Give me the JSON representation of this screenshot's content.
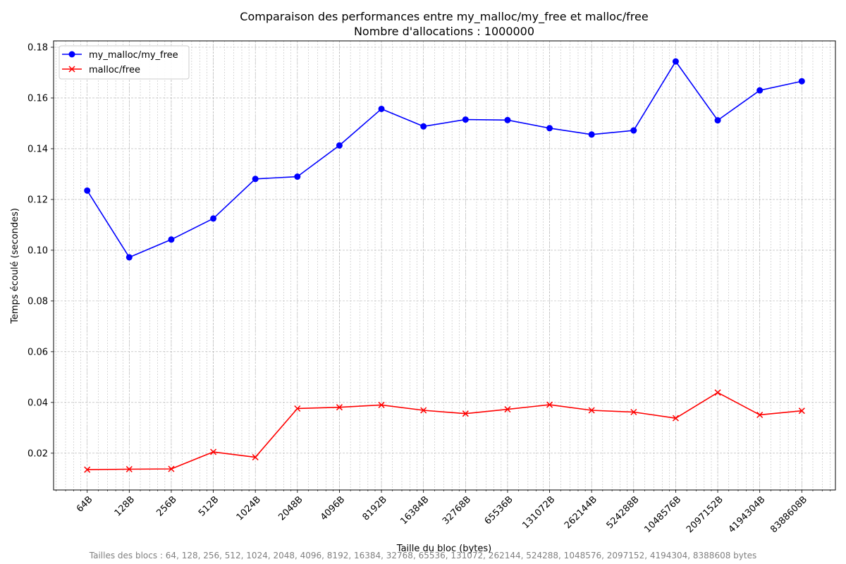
{
  "chart_data": {
    "type": "line",
    "title": "Comparaison des performances entre my_malloc/my_free et malloc/free",
    "subtitle": "Nombre d'allocations : 1000000",
    "xlabel": "Taille du bloc (bytes)",
    "ylabel": "Temps écoulé (secondes)",
    "x_scale": "log2",
    "x": [
      64,
      128,
      256,
      512,
      1024,
      2048,
      4096,
      8192,
      16384,
      32768,
      65536,
      131072,
      262144,
      524288,
      1048576,
      2097152,
      4194304,
      8388608
    ],
    "x_tick_labels": [
      "64B",
      "128B",
      "256B",
      "512B",
      "1024B",
      "2048B",
      "4096B",
      "8192B",
      "16384B",
      "32768B",
      "65536B",
      "131072B",
      "262144B",
      "524288B",
      "1048576B",
      "2097152B",
      "4194304B",
      "8388608B"
    ],
    "y_ticks": [
      "0.02",
      "0.04",
      "0.06",
      "0.08",
      "0.10",
      "0.12",
      "0.14",
      "0.16",
      "0.18"
    ],
    "ylim": [
      0.0055,
      0.1825
    ],
    "grid": true,
    "legend_position": "top-left",
    "footnote": "Tailles des blocs : 64, 128, 256, 512, 1024, 2048, 4096, 8192, 16384, 32768, 65536, 131072, 262144, 524288, 1048576, 2097152, 4194304, 8388608 bytes",
    "series": [
      {
        "name": "my_malloc/my_free",
        "color": "#0000ff",
        "marker": "circle",
        "values": [
          0.1235,
          0.0972,
          0.1042,
          0.1125,
          0.1281,
          0.129,
          0.1413,
          0.1557,
          0.1488,
          0.1515,
          0.1513,
          0.1481,
          0.1456,
          0.1472,
          0.1744,
          0.1512,
          0.163,
          0.1666
        ]
      },
      {
        "name": "malloc/free",
        "color": "#ff0000",
        "marker": "x",
        "values": [
          0.0135,
          0.0137,
          0.0138,
          0.0205,
          0.0184,
          0.0376,
          0.0381,
          0.039,
          0.0369,
          0.0356,
          0.0373,
          0.0391,
          0.0369,
          0.0362,
          0.0338,
          0.0439,
          0.0351,
          0.0367
        ]
      }
    ]
  }
}
